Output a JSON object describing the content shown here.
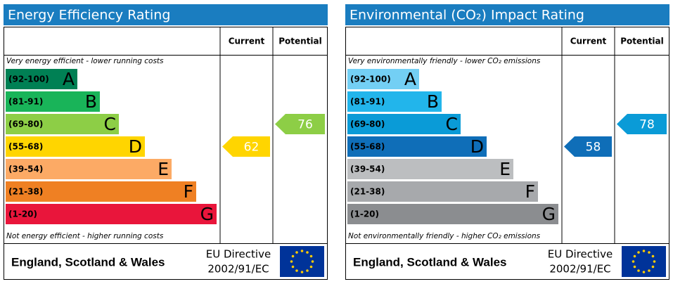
{
  "panels": [
    {
      "title": "Energy Efficiency Rating",
      "headers": [
        "Current",
        "Potential"
      ],
      "top_note": "Very energy efficient - lower running costs",
      "bottom_note": "Not energy efficient - higher running costs",
      "bands": [
        {
          "range": "(92-100)",
          "letter": "A",
          "color": "#008054"
        },
        {
          "range": "(81-91)",
          "letter": "B",
          "color": "#19b459"
        },
        {
          "range": "(69-80)",
          "letter": "C",
          "color": "#8dce46"
        },
        {
          "range": "(55-68)",
          "letter": "D",
          "color": "#ffd500"
        },
        {
          "range": "(39-54)",
          "letter": "E",
          "color": "#fcaa65"
        },
        {
          "range": "(21-38)",
          "letter": "F",
          "color": "#ef8023"
        },
        {
          "range": "(1-20)",
          "letter": "G",
          "color": "#e9153b"
        }
      ],
      "current": 62,
      "potential": 76,
      "footer": {
        "region": "England, Scotland & Wales",
        "directive": [
          "EU Directive",
          "2002/91/EC"
        ]
      }
    },
    {
      "title": "Environmental (CO₂) Impact Rating",
      "headers": [
        "Current",
        "Potential"
      ],
      "top_note": "Very environmentally friendly - lower CO₂ emissions",
      "bottom_note": "Not environmentally friendly - higher CO₂ emissions",
      "bands": [
        {
          "range": "(92-100)",
          "letter": "A",
          "color": "#73cff4"
        },
        {
          "range": "(81-91)",
          "letter": "B",
          "color": "#22b5eb"
        },
        {
          "range": "(69-80)",
          "letter": "C",
          "color": "#0a9bd7"
        },
        {
          "range": "(55-68)",
          "letter": "D",
          "color": "#0f6eb8"
        },
        {
          "range": "(39-54)",
          "letter": "E",
          "color": "#bcbec0"
        },
        {
          "range": "(21-38)",
          "letter": "F",
          "color": "#a7a9ac"
        },
        {
          "range": "(1-20)",
          "letter": "G",
          "color": "#8b8d90"
        }
      ],
      "current": 58,
      "potential": 78,
      "footer": {
        "region": "England, Scotland & Wales",
        "directive": [
          "EU Directive",
          "2002/91/EC"
        ]
      }
    }
  ]
}
